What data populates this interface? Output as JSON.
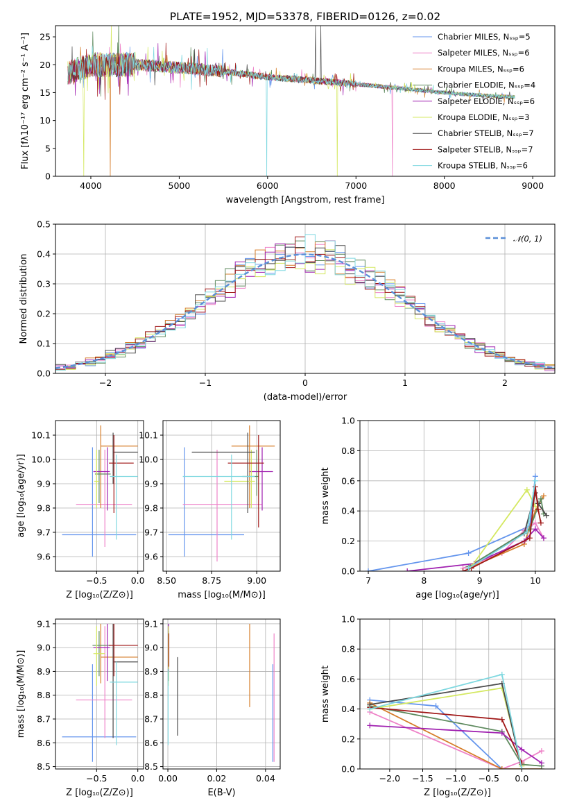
{
  "figure": {
    "title": "PLATE=1952, MJD=53378, FIBERID=0126, z=0.02"
  },
  "series_colors": [
    "#6495ed",
    "#ee82c8",
    "#d67d2a",
    "#5e8a5e",
    "#a020b0",
    "#d4e860",
    "#4a4a4a",
    "#a01818",
    "#7fd8e0"
  ],
  "chart_data": [
    {
      "id": "spectrum",
      "type": "line",
      "xlabel": "wavelength [Angstrom, rest frame]",
      "ylabel": "Flux [fλ10⁻¹⁷ erg cm⁻² s⁻¹ A⁻¹]",
      "xlim": [
        3600,
        9250
      ],
      "ylim": [
        0,
        27
      ],
      "xticks": [
        4000,
        5000,
        6000,
        7000,
        8000,
        9000
      ],
      "yticks": [
        0,
        5,
        10,
        15,
        20,
        25
      ],
      "legend_position": "top-right",
      "series": [
        {
          "name": "Chabrier MILES, Nₛₛₚ=5"
        },
        {
          "name": "Salpeter MILES, Nₛₛₚ=6"
        },
        {
          "name": "Kroupa MILES, Nₛₛₚ=6"
        },
        {
          "name": "Chabrier ELODIE, Nₛₛₚ=4"
        },
        {
          "name": "Salpeter ELODIE, Nₛₛₚ=6"
        },
        {
          "name": "Kroupa ELODIE, Nₛₛₚ=3"
        },
        {
          "name": "Chabrier STELIB, Nₛₛₚ=7"
        },
        {
          "name": "Salpeter STELIB, Nₛₛₚ=7"
        },
        {
          "name": "Kroupa STELIB, Nₛₛₚ=6"
        }
      ],
      "continuum": {
        "x": [
          3750,
          4000,
          4500,
          5000,
          5500,
          6000,
          6500,
          7000,
          7500,
          8000,
          8500,
          8800
        ],
        "y": [
          18.5,
          20.0,
          20.0,
          19.5,
          18.8,
          17.8,
          17.2,
          16.5,
          15.8,
          15.0,
          14.4,
          14.2
        ]
      }
    },
    {
      "id": "residuals",
      "type": "histogram",
      "xlabel": "(data-model)/error",
      "ylabel": "Normed distribution",
      "xlim": [
        -2.5,
        2.5
      ],
      "ylim": [
        0,
        0.5
      ],
      "xticks": [
        -2,
        -1,
        0,
        1,
        2
      ],
      "yticks": [
        0.0,
        0.1,
        0.2,
        0.3,
        0.4,
        0.5
      ],
      "grid": true,
      "legend_position": "top-right",
      "reference_curve": {
        "name": "𝒩(0, 1)",
        "mean": 0,
        "sigma": 1
      },
      "bin_width": 0.1
    },
    {
      "id": "age-vs-Z",
      "type": "errorbar",
      "xlabel": "Z [log₁₀(Z/Z⊙)]",
      "ylabel": "age  [log₁₀(age/yr)]",
      "xlim": [
        -1.0,
        0.07
      ],
      "ylim": [
        9.54,
        10.16
      ],
      "xticks": [
        -0.5,
        0.0
      ],
      "yticks": [
        9.6,
        9.7,
        9.8,
        9.9,
        10.0,
        10.1
      ],
      "grid": true,
      "points": [
        {
          "x": -0.55,
          "y": 9.69,
          "xlo": -0.92,
          "xhi": -0.02,
          "ylo": 9.6,
          "yhi": 10.05
        },
        {
          "x": -0.4,
          "y": 9.815,
          "xlo": -0.75,
          "xhi": -0.07,
          "ylo": 9.64,
          "yhi": 10.04
        },
        {
          "x": -0.45,
          "y": 10.055,
          "xlo": -0.45,
          "xhi": 0.0,
          "ylo": 9.8,
          "yhi": 10.14
        },
        {
          "x": -0.47,
          "y": 9.94,
          "xlo": -0.52,
          "xhi": -0.33,
          "ylo": 9.82,
          "yhi": 10.04
        },
        {
          "x": -0.37,
          "y": 9.95,
          "xlo": -0.54,
          "xhi": -0.34,
          "ylo": 9.79,
          "yhi": 10.05
        },
        {
          "x": -0.5,
          "y": 9.91,
          "xlo": -0.53,
          "xhi": -0.47,
          "ylo": 9.8,
          "yhi": 10.04
        },
        {
          "x": -0.3,
          "y": 10.03,
          "xlo": -0.3,
          "xhi": 0.0,
          "ylo": 9.9,
          "yhi": 10.11
        },
        {
          "x": -0.29,
          "y": 9.985,
          "xlo": -0.35,
          "xhi": -0.05,
          "ylo": 9.78,
          "yhi": 10.1
        },
        {
          "x": -0.26,
          "y": 9.93,
          "xlo": -0.34,
          "xhi": 0.0,
          "ylo": 9.67,
          "yhi": 10.02
        }
      ]
    },
    {
      "id": "age-vs-mass",
      "type": "errorbar",
      "xlabel": "mass [log₁₀(M/M⊙)]",
      "ylabel": "",
      "xlim": [
        8.48,
        9.13
      ],
      "ylim": [
        9.54,
        10.16
      ],
      "xticks": [
        8.5,
        8.75,
        9.0
      ],
      "yticks": [
        9.6,
        9.7,
        9.8,
        9.9,
        10.0,
        10.1
      ],
      "grid": true,
      "points": [
        {
          "x": 8.6,
          "y": 9.69,
          "xlo": 8.51,
          "xhi": 8.93,
          "ylo": 9.6,
          "yhi": 10.05
        },
        {
          "x": 8.78,
          "y": 9.815,
          "xlo": 8.59,
          "xhi": 9.03,
          "ylo": 9.58,
          "yhi": 10.04
        },
        {
          "x": 8.96,
          "y": 10.055,
          "xlo": 8.86,
          "xhi": 9.1,
          "ylo": 9.8,
          "yhi": 10.14
        },
        {
          "x": 9.0,
          "y": 9.93,
          "xlo": 8.92,
          "xhi": 9.01,
          "ylo": 9.85,
          "yhi": 10.04
        },
        {
          "x": 9.03,
          "y": 9.95,
          "xlo": 8.96,
          "xhi": 9.09,
          "ylo": 9.79,
          "yhi": 10.05
        },
        {
          "x": 8.97,
          "y": 9.91,
          "xlo": 8.82,
          "xhi": 8.99,
          "ylo": 9.8,
          "yhi": 10.04
        },
        {
          "x": 8.95,
          "y": 10.03,
          "xlo": 8.64,
          "xhi": 8.99,
          "ylo": 9.78,
          "yhi": 10.11
        },
        {
          "x": 9.01,
          "y": 9.985,
          "xlo": 8.84,
          "xhi": 9.04,
          "ylo": 9.72,
          "yhi": 10.1
        },
        {
          "x": 8.86,
          "y": 9.93,
          "xlo": 8.59,
          "xhi": 8.99,
          "ylo": 9.67,
          "yhi": 10.02
        }
      ]
    },
    {
      "id": "mass-weight-vs-age",
      "type": "line",
      "xlabel": "age  [log₁₀(age/yr)]",
      "ylabel": "mass weight",
      "xlim": [
        6.85,
        10.35
      ],
      "ylim": [
        0,
        1.0
      ],
      "xticks": [
        7,
        8,
        9,
        10
      ],
      "yticks": [
        0.0,
        0.2,
        0.4,
        0.6,
        0.8,
        1.0
      ],
      "grid": true,
      "series": [
        {
          "x": [
            7.0,
            8.8,
            9.9,
            10.0
          ],
          "y": [
            0.0,
            0.12,
            0.3,
            0.63
          ]
        },
        {
          "x": [
            8.7,
            9.4,
            9.8,
            10.0,
            10.15
          ],
          "y": [
            0.02,
            0.12,
            0.27,
            0.32,
            0.22
          ]
        },
        {
          "x": [
            8.8,
            9.8,
            10.0,
            10.15
          ],
          "y": [
            0.02,
            0.18,
            0.4,
            0.5
          ]
        },
        {
          "x": [
            8.8,
            9.9,
            10.1,
            10.15
          ],
          "y": [
            0.03,
            0.28,
            0.48,
            0.38
          ]
        },
        {
          "x": [
            7.7,
            8.9,
            9.8,
            10.0,
            10.15
          ],
          "y": [
            0.0,
            0.05,
            0.2,
            0.28,
            0.22
          ]
        },
        {
          "x": [
            8.85,
            9.85,
            10.0
          ],
          "y": [
            0.03,
            0.54,
            0.43
          ]
        },
        {
          "x": [
            8.8,
            9.8,
            10.0,
            10.05,
            10.2
          ],
          "y": [
            0.02,
            0.25,
            0.52,
            0.45,
            0.37
          ]
        },
        {
          "x": [
            8.7,
            8.85,
            9.9,
            10.0,
            10.05,
            10.1
          ],
          "y": [
            0.0,
            0.02,
            0.22,
            0.56,
            0.41,
            0.32
          ]
        },
        {
          "x": [
            8.8,
            9.85,
            10.0
          ],
          "y": [
            0.02,
            0.26,
            0.6
          ]
        }
      ]
    },
    {
      "id": "mass-vs-Z",
      "type": "errorbar",
      "xlabel": "Z [log₁₀(Z/Z⊙)]",
      "ylabel": "mass [log₁₀(M/M⊙)]",
      "xlim": [
        -1.0,
        0.07
      ],
      "ylim": [
        8.49,
        9.12
      ],
      "xticks": [
        -0.5,
        0.0
      ],
      "yticks": [
        8.5,
        8.6,
        8.7,
        8.8,
        8.9,
        9.0,
        9.1
      ],
      "grid": true,
      "points": [
        {
          "x": -0.55,
          "y": 8.625,
          "xlo": -0.92,
          "xhi": -0.02,
          "ylo": 8.52,
          "yhi": 8.93
        },
        {
          "x": -0.4,
          "y": 8.78,
          "xlo": -0.75,
          "xhi": -0.07,
          "ylo": 8.62,
          "yhi": 9.09
        },
        {
          "x": -0.45,
          "y": 8.96,
          "xlo": -0.45,
          "xhi": 0.0,
          "ylo": 8.85,
          "yhi": 9.1
        },
        {
          "x": -0.47,
          "y": 9.01,
          "xlo": -0.55,
          "xhi": -0.33,
          "ylo": 8.88,
          "yhi": 9.07
        },
        {
          "x": -0.37,
          "y": 9.0,
          "xlo": -0.54,
          "xhi": -0.34,
          "ylo": 8.86,
          "yhi": 9.1
        },
        {
          "x": -0.5,
          "y": 8.975,
          "xlo": -0.54,
          "xhi": -0.4,
          "ylo": 8.84,
          "yhi": 9.09
        },
        {
          "x": -0.3,
          "y": 8.94,
          "xlo": -0.3,
          "xhi": 0.0,
          "ylo": 8.62,
          "yhi": 9.1
        },
        {
          "x": -0.29,
          "y": 9.01,
          "xlo": -0.35,
          "xhi": 0.0,
          "ylo": 8.88,
          "yhi": 9.1
        },
        {
          "x": -0.26,
          "y": 8.855,
          "xlo": -0.34,
          "xhi": 0.0,
          "ylo": 8.59,
          "yhi": 8.94
        }
      ]
    },
    {
      "id": "mass-vs-EBV",
      "type": "errorbar",
      "xlabel": "E(B-V)",
      "ylabel": "",
      "xlim": [
        -0.002,
        0.046
      ],
      "ylim": [
        8.49,
        9.12
      ],
      "xticks": [
        0.0,
        0.02,
        0.04
      ],
      "yticks": [
        8.5,
        8.6,
        8.7,
        8.8,
        8.9,
        9.0,
        9.1
      ],
      "grid": true,
      "points": [
        {
          "x": 0.043,
          "y": 8.625,
          "xlo": 0.043,
          "xhi": 0.043,
          "ylo": 8.52,
          "yhi": 8.93
        },
        {
          "x": 0.0435,
          "y": 8.78,
          "xlo": 0.0435,
          "xhi": 0.0435,
          "ylo": 8.52,
          "yhi": 9.06
        },
        {
          "x": 0.0335,
          "y": 8.96,
          "xlo": 0.0335,
          "xhi": 0.0335,
          "ylo": 8.75,
          "yhi": 9.1
        },
        {
          "x": 0.0003,
          "y": 9.01,
          "xlo": 0.0003,
          "xhi": 0.0003,
          "ylo": 8.86,
          "yhi": 9.07
        },
        {
          "x": 0.0003,
          "y": 9.0,
          "xlo": 0.0003,
          "xhi": 0.0003,
          "ylo": 8.9,
          "yhi": 9.1
        },
        {
          "x": 0.0002,
          "y": 8.975,
          "xlo": 0.0002,
          "xhi": 0.0002,
          "ylo": 8.84,
          "yhi": 9.09
        },
        {
          "x": 0.004,
          "y": 8.94,
          "xlo": 0.004,
          "xhi": 0.004,
          "ylo": 8.63,
          "yhi": 8.96
        },
        {
          "x": 0.0004,
          "y": 9.01,
          "xlo": 0.0004,
          "xhi": 0.0004,
          "ylo": 8.92,
          "yhi": 9.06
        },
        {
          "x": 0.0001,
          "y": 8.75,
          "xlo": 0.0001,
          "xhi": 0.0001,
          "ylo": 8.59,
          "yhi": 8.91
        }
      ]
    },
    {
      "id": "mass-weight-vs-Z",
      "type": "line",
      "xlabel": "Z [log₁₀(Z/Z⊙)]",
      "ylabel": "mass weight",
      "xlim": [
        -2.45,
        0.5
      ],
      "ylim": [
        0,
        1.0
      ],
      "xticks": [
        -2.0,
        -1.5,
        -1.0,
        -0.5,
        0.0
      ],
      "yticks": [
        0.0,
        0.2,
        0.4,
        0.6,
        0.8,
        1.0
      ],
      "grid": true,
      "series": [
        {
          "x": [
            -2.3,
            -1.3,
            -0.3,
            0.0,
            0.3
          ],
          "y": [
            0.46,
            0.42,
            0.0,
            0.0,
            0.0
          ]
        },
        {
          "x": [
            -2.3,
            -0.3,
            0.0,
            0.3
          ],
          "y": [
            0.38,
            0.0,
            0.05,
            0.12
          ]
        },
        {
          "x": [
            -2.3,
            -0.3,
            0.0,
            0.3
          ],
          "y": [
            0.44,
            0.0,
            0.0,
            0.0
          ]
        },
        {
          "x": [
            -2.3,
            -0.3,
            0.0,
            0.3
          ],
          "y": [
            0.42,
            0.25,
            0.03,
            0.02
          ]
        },
        {
          "x": [
            -2.3,
            -0.3,
            0.0,
            0.3
          ],
          "y": [
            0.29,
            0.24,
            0.13,
            0.04
          ]
        },
        {
          "x": [
            -2.3,
            -0.3,
            0.0
          ],
          "y": [
            0.4,
            0.54,
            0.02
          ]
        },
        {
          "x": [
            -2.3,
            -0.3,
            0.0
          ],
          "y": [
            0.43,
            0.57,
            0.0
          ]
        },
        {
          "x": [
            -2.3,
            -0.3,
            0.0
          ],
          "y": [
            0.41,
            0.33,
            0.04
          ]
        },
        {
          "x": [
            -2.3,
            -0.3,
            0.0
          ],
          "y": [
            0.4,
            0.63,
            0.0
          ]
        }
      ]
    }
  ]
}
